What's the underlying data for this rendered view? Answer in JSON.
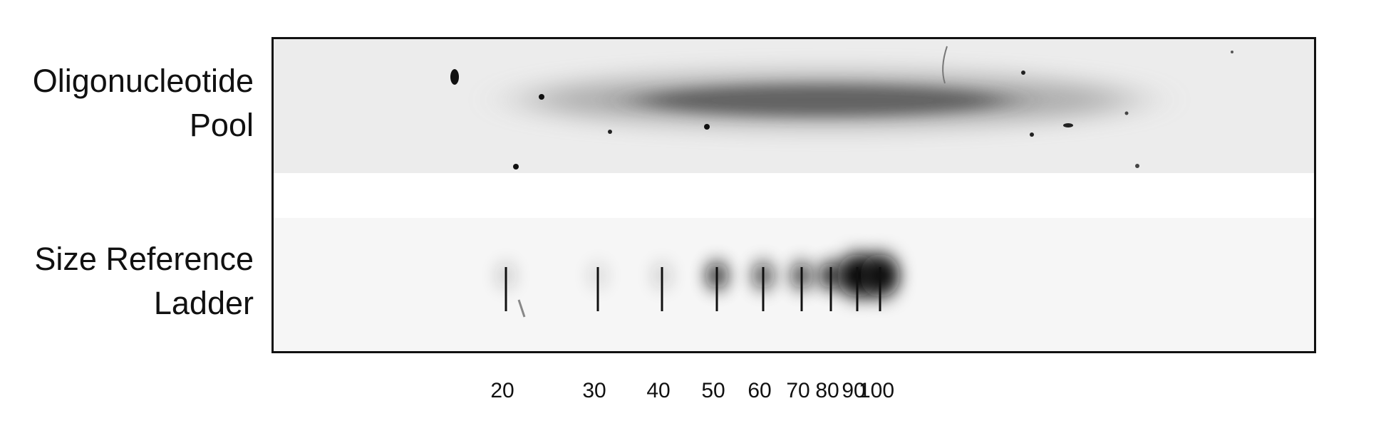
{
  "lanes": {
    "top": {
      "line1": "Oligonucleotide",
      "line2": "Pool"
    },
    "bottom": {
      "line1": "Size Reference",
      "line2": "Ladder"
    }
  },
  "ladder": {
    "marks": [
      {
        "label": "20",
        "intensity": 0.15
      },
      {
        "label": "30",
        "intensity": 0.1
      },
      {
        "label": "40",
        "intensity": 0.14
      },
      {
        "label": "50",
        "intensity": 0.85
      },
      {
        "label": "60",
        "intensity": 0.7
      },
      {
        "label": "70",
        "intensity": 0.75
      },
      {
        "label": "80",
        "intensity": 0.9
      },
      {
        "label": "90",
        "intensity": 1.0
      },
      {
        "label": "100",
        "intensity": 1.0
      }
    ]
  },
  "colors": {
    "band": "#111111",
    "smear": "#2a2a2a",
    "lane_bg": "#eeeeee",
    "frame": "#111111"
  }
}
